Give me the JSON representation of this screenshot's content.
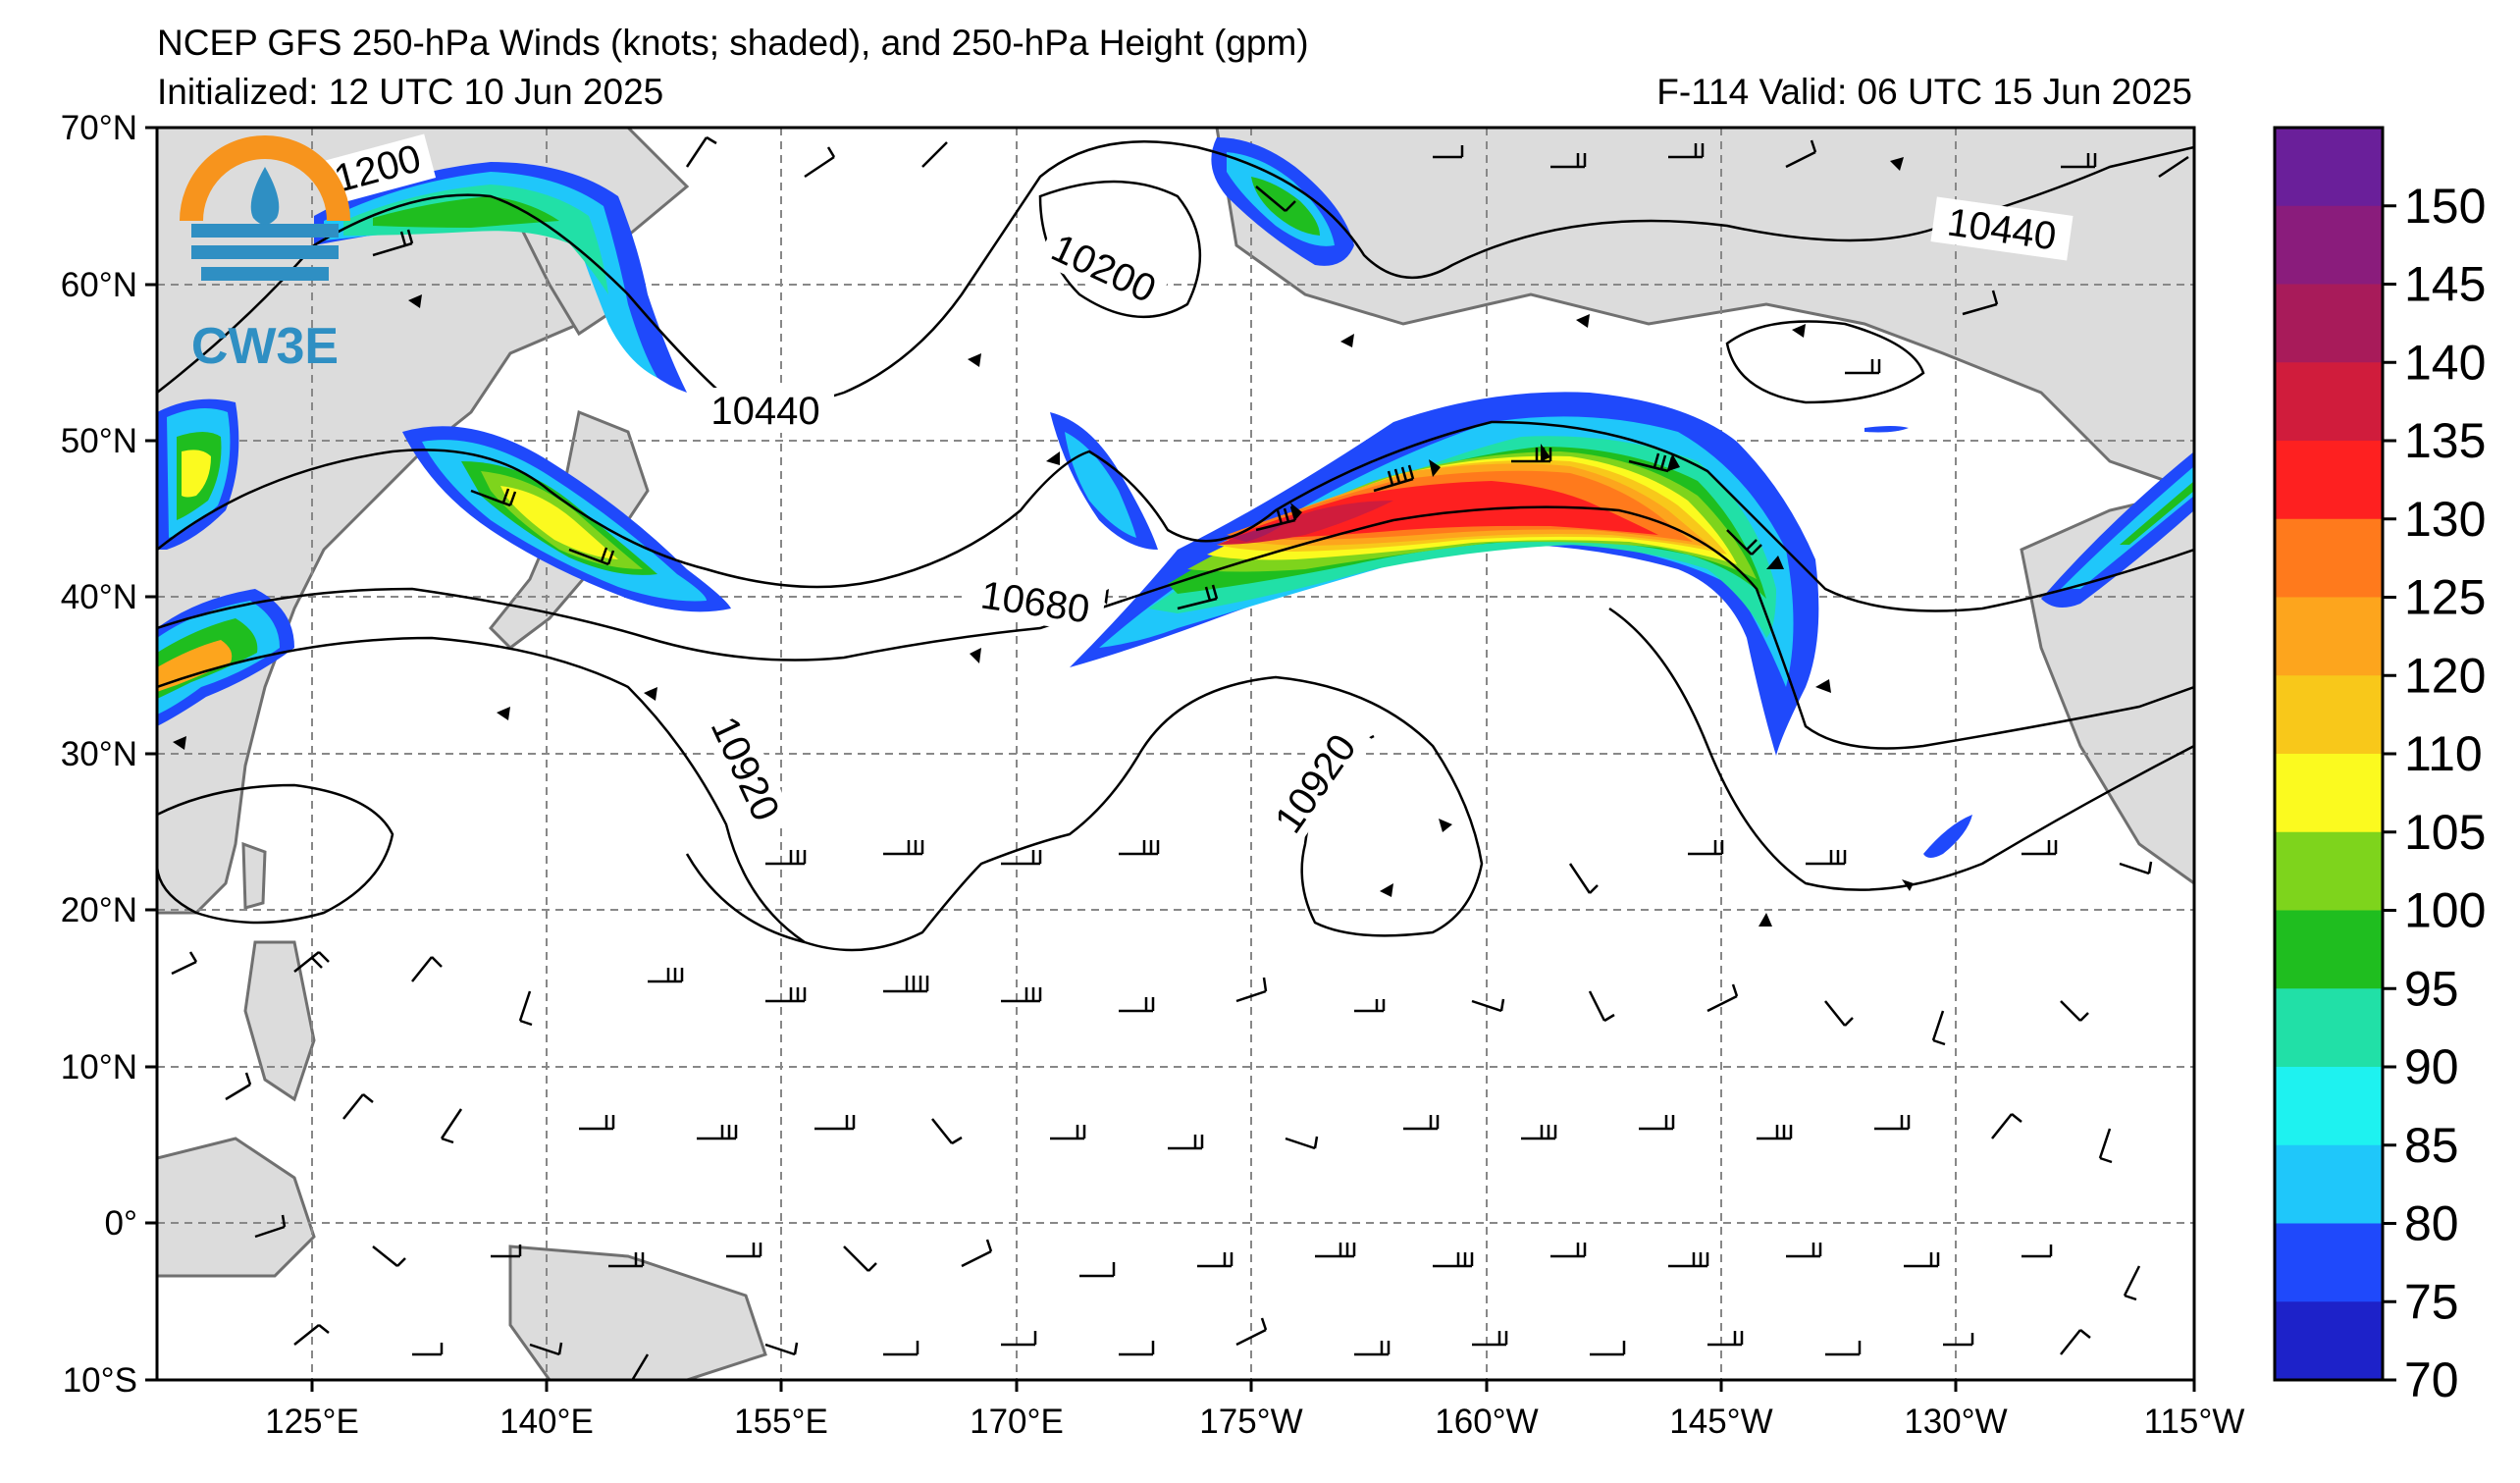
{
  "header": {
    "title": "NCEP GFS 250-hPa Winds (knots; shaded), and 250-hPa Height (gpm)",
    "initialized": "Initialized: 12 UTC 10 Jun 2025",
    "valid": "F-114  Valid: 06 UTC 15 Jun 2025"
  },
  "logo": {
    "text": "CW3E"
  },
  "map": {
    "lat_range": [
      -10,
      70
    ],
    "lon_range": [
      "115E",
      "115W"
    ],
    "lat_labels": [
      "70°N",
      "60°N",
      "50°N",
      "40°N",
      "30°N",
      "20°N",
      "10°N",
      "0°",
      "10°S"
    ],
    "lon_labels": [
      "125°E",
      "140°E",
      "155°E",
      "170°E",
      "175°W",
      "160°W",
      "145°W",
      "130°W",
      "115°W"
    ],
    "gridlines": "dashed",
    "land_color": "#dcdcdc",
    "coast_color": "#707070"
  },
  "contours": {
    "labels": [
      "1200",
      "10200",
      "10440",
      "10440",
      "10680",
      "10920",
      "10920"
    ]
  },
  "colorbar": {
    "ticks": [
      "150",
      "145",
      "140",
      "135",
      "130",
      "125",
      "120",
      "110",
      "105",
      "100",
      "95",
      "90",
      "85",
      "80",
      "75",
      "70"
    ],
    "colors": [
      "#6a1f9a",
      "#8a1c7c",
      "#a81b5a",
      "#d01c3c",
      "#fe2020",
      "#ff7a1c",
      "#fda51d",
      "#f8c81a",
      "#fbfa1f",
      "#7ed41c",
      "#1fbe1f",
      "#21e0a7",
      "#1ef2f0",
      "#1fc7fa",
      "#1f49fb",
      "#1d22c9"
    ]
  },
  "shading_colors": {
    "blue": "#1f49fb",
    "lightblue": "#1fc7fa",
    "cyan": "#1ef2f0",
    "teal": "#21e0a7",
    "green": "#1fbe1f",
    "lime": "#7ed41c",
    "yellow": "#fbfa1f",
    "gold": "#f8c81a",
    "orange": "#fda51d",
    "darkorange": "#ff7a1c",
    "red": "#fe2020",
    "crimson": "#d01c3c",
    "magenta": "#a81b5a"
  }
}
